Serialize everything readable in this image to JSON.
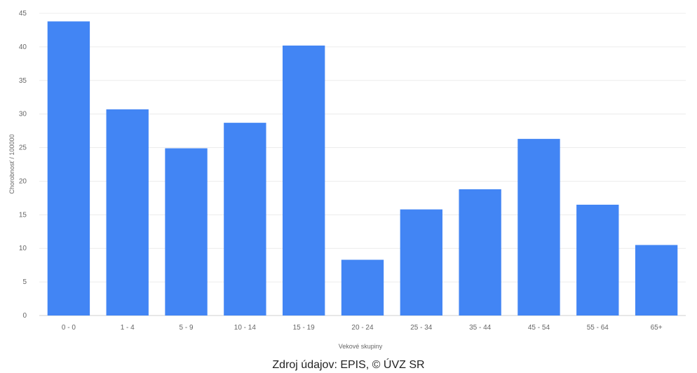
{
  "chart_data": {
    "type": "bar",
    "title": "",
    "xlabel": "Vekové skupiny",
    "ylabel": "Chorobnosť / 100000",
    "categories": [
      "0 - 0",
      "1 - 4",
      "5 - 9",
      "10 - 14",
      "15 - 19",
      "20 - 24",
      "25 - 34",
      "35 - 44",
      "45 - 54",
      "55 - 64",
      "65+"
    ],
    "series": [
      {
        "name": "",
        "values": [
          43.8,
          30.7,
          24.9,
          28.7,
          40.2,
          8.3,
          15.8,
          18.8,
          26.3,
          16.5,
          10.5
        ]
      }
    ],
    "ylim": [
      0,
      45
    ],
    "yticks": [
      "0",
      "5",
      "10",
      "15",
      "20",
      "25",
      "30",
      "35",
      "40",
      "45"
    ],
    "grid": true,
    "legend": "none",
    "bar_color": "#4285f4",
    "source": "Zdroj údajov: EPIS, © ÚVZ SR"
  }
}
